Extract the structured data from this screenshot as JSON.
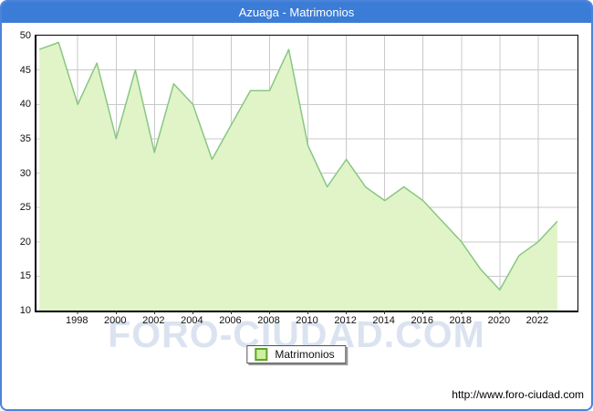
{
  "window": {
    "title": "Azuaga - Matrimonios"
  },
  "chart_data": {
    "type": "area",
    "title": "Azuaga - Matrimonios",
    "series": [
      {
        "name": "Matrimonios",
        "x": [
          1996,
          1997,
          1998,
          1999,
          2000,
          2001,
          2002,
          2003,
          2004,
          2005,
          2006,
          2007,
          2008,
          2009,
          2010,
          2011,
          2012,
          2013,
          2014,
          2015,
          2016,
          2017,
          2018,
          2019,
          2020,
          2021,
          2022,
          2023
        ],
        "values": [
          48,
          49,
          40,
          46,
          35,
          45,
          33,
          43,
          40,
          32,
          37,
          42,
          42,
          48,
          34,
          28,
          32,
          28,
          26,
          28,
          26,
          23,
          20,
          16,
          13,
          18,
          20,
          23
        ]
      }
    ],
    "xlabel": "",
    "ylabel": "",
    "ylim": [
      10,
      50
    ],
    "yticks": [
      10,
      15,
      20,
      25,
      30,
      35,
      40,
      45,
      50
    ],
    "xticks": [
      1998,
      2000,
      2002,
      2004,
      2006,
      2008,
      2010,
      2012,
      2014,
      2016,
      2018,
      2020,
      2022
    ],
    "x_range": [
      1995.85,
      2024.05
    ],
    "grid": true,
    "legend_position": "bottom-center",
    "colors": {
      "area_fill": "#e0f4c8",
      "area_stroke": "#89c683",
      "gridline": "#c9c9c9",
      "axis": "#000000",
      "tick": "#333333",
      "titlebar_bg": "#3b7cd6",
      "titlebar_text": "#ffffff",
      "outer_border": "#4a83d9",
      "legend_swatch_fill": "#cdf09e",
      "legend_swatch_border": "#5fa32a",
      "watermark": "#b9c9e2"
    }
  },
  "legend": {
    "label": "Matrimonios"
  },
  "watermark": {
    "text": "FORO-CIUDAD.COM"
  },
  "footer": {
    "url": "http://www.foro-ciudad.com"
  }
}
